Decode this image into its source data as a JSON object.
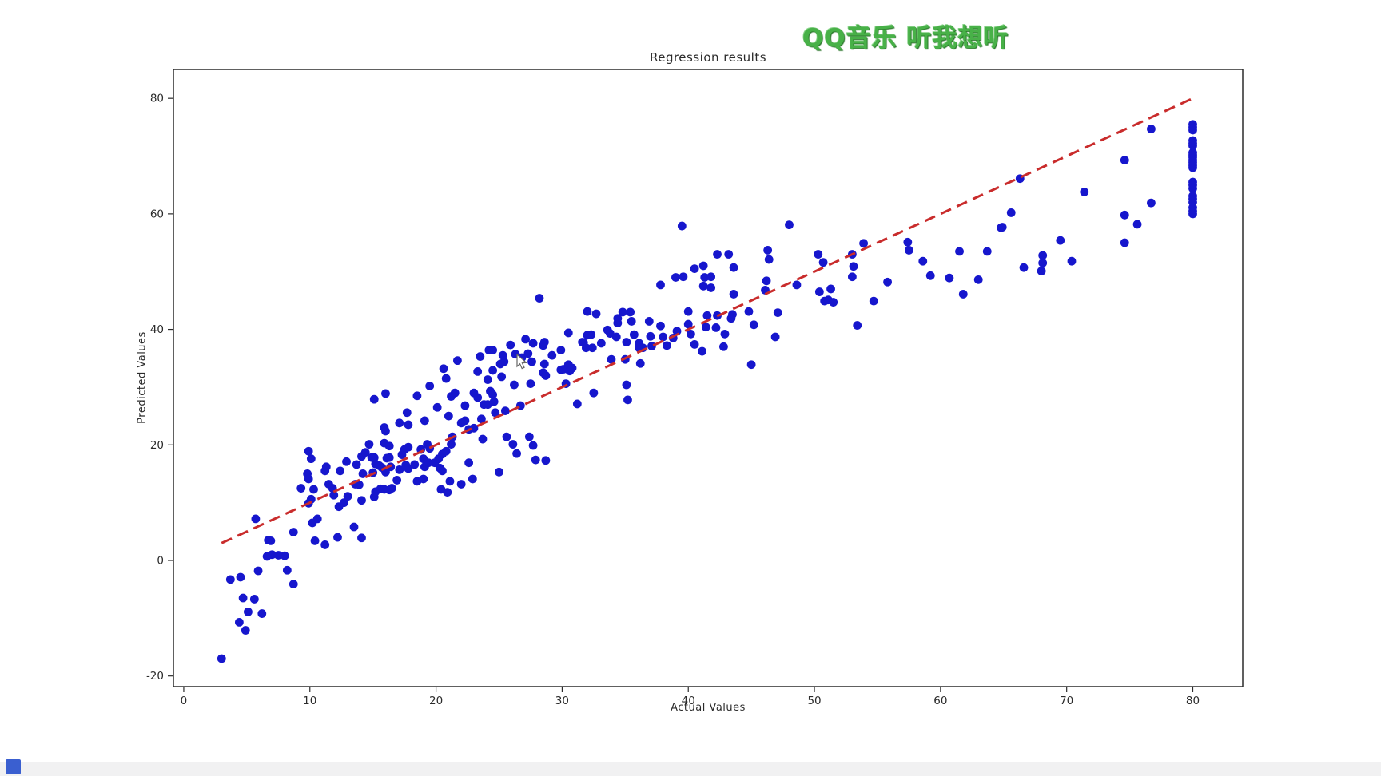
{
  "window": {
    "background": "#ffffff"
  },
  "watermark": {
    "text": "QQ音乐 听我想听",
    "color": "#48b148"
  },
  "taskbar": {
    "bar_color": "#f1f1f2",
    "app_square_color": "#3a5fd0"
  },
  "chart_data": {
    "type": "scatter",
    "title": "Regression results",
    "xlabel": "Actual Values",
    "ylabel": "Predicted Values",
    "x_ticks": [
      0,
      10,
      20,
      30,
      40,
      50,
      60,
      70,
      80
    ],
    "y_ticks": [
      -20,
      0,
      20,
      40,
      60,
      80
    ],
    "xlim": [
      -0.82,
      83.96
    ],
    "ylim": [
      -21.84,
      85.0
    ],
    "grid": false,
    "legend": "none",
    "point_color": "#1616cd",
    "point_radius": 5.4,
    "axis_color": "#2b2b2b",
    "reference_line": {
      "style": "dashed",
      "color": "#c92c2c",
      "width": 3,
      "dash": "14,8",
      "from": [
        3,
        3
      ],
      "to": [
        80,
        80
      ],
      "meaning": "y = x identity line"
    },
    "points": [
      [
        3.0,
        -17.0
      ],
      [
        3.7,
        -3.3
      ],
      [
        4.4,
        -10.7
      ],
      [
        4.5,
        -2.9
      ],
      [
        4.7,
        -6.5
      ],
      [
        4.9,
        -12.1
      ],
      [
        5.1,
        -8.9
      ],
      [
        5.6,
        -6.7
      ],
      [
        5.7,
        7.2
      ],
      [
        5.9,
        -1.8
      ],
      [
        6.2,
        -9.2
      ],
      [
        6.6,
        0.7
      ],
      [
        6.7,
        3.5
      ],
      [
        6.9,
        3.4
      ],
      [
        7.0,
        1.0
      ],
      [
        7.5,
        0.9
      ],
      [
        8.0,
        0.8
      ],
      [
        8.2,
        -1.7
      ],
      [
        8.7,
        -4.1
      ],
      [
        8.7,
        4.9
      ],
      [
        9.3,
        12.5
      ],
      [
        9.8,
        15.0
      ],
      [
        9.9,
        18.9
      ],
      [
        9.9,
        14.1
      ],
      [
        9.9,
        9.9
      ],
      [
        10.1,
        17.6
      ],
      [
        10.1,
        10.6
      ],
      [
        10.2,
        6.5
      ],
      [
        10.3,
        12.3
      ],
      [
        10.4,
        3.4
      ],
      [
        10.6,
        7.2
      ],
      [
        11.2,
        15.5
      ],
      [
        11.2,
        2.7
      ],
      [
        11.3,
        16.2
      ],
      [
        11.5,
        13.2
      ],
      [
        11.8,
        12.5
      ],
      [
        11.9,
        11.3
      ],
      [
        12.2,
        4.0
      ],
      [
        12.3,
        9.3
      ],
      [
        12.4,
        15.5
      ],
      [
        12.7,
        10.0
      ],
      [
        12.9,
        17.1
      ],
      [
        13.0,
        11.1
      ],
      [
        13.5,
        5.8
      ],
      [
        13.6,
        13.2
      ],
      [
        13.7,
        16.6
      ],
      [
        13.9,
        13.1
      ],
      [
        14.1,
        18.0
      ],
      [
        14.1,
        10.4
      ],
      [
        14.1,
        3.9
      ],
      [
        14.2,
        15.0
      ],
      [
        14.4,
        18.7
      ],
      [
        14.7,
        20.1
      ],
      [
        14.9,
        17.8
      ],
      [
        15.0,
        15.2
      ],
      [
        15.1,
        27.9
      ],
      [
        15.1,
        17.8
      ],
      [
        15.1,
        11.0
      ],
      [
        15.2,
        16.7
      ],
      [
        15.2,
        11.9
      ],
      [
        15.5,
        16.4
      ],
      [
        15.6,
        12.4
      ],
      [
        15.7,
        16.1
      ],
      [
        15.9,
        23.0
      ],
      [
        15.9,
        20.3
      ],
      [
        15.9,
        12.3
      ],
      [
        16.0,
        28.9
      ],
      [
        16.0,
        22.4
      ],
      [
        16.0,
        15.3
      ],
      [
        16.1,
        17.7
      ],
      [
        16.3,
        19.8
      ],
      [
        16.3,
        17.8
      ],
      [
        16.3,
        12.2
      ],
      [
        16.4,
        16.2
      ],
      [
        16.5,
        12.5
      ],
      [
        16.9,
        13.9
      ],
      [
        17.1,
        23.8
      ],
      [
        17.1,
        15.7
      ],
      [
        17.3,
        18.3
      ],
      [
        17.5,
        19.2
      ],
      [
        17.6,
        16.5
      ],
      [
        17.7,
        25.6
      ],
      [
        17.8,
        23.5
      ],
      [
        17.8,
        19.6
      ],
      [
        17.8,
        15.9
      ],
      [
        18.3,
        16.6
      ],
      [
        18.5,
        28.5
      ],
      [
        18.5,
        13.7
      ],
      [
        18.8,
        19.2
      ],
      [
        19.0,
        17.6
      ],
      [
        19.0,
        14.1
      ],
      [
        19.1,
        24.2
      ],
      [
        19.1,
        16.2
      ],
      [
        19.3,
        20.1
      ],
      [
        19.4,
        16.9
      ],
      [
        19.5,
        30.2
      ],
      [
        19.5,
        19.4
      ],
      [
        19.9,
        16.9
      ],
      [
        20.1,
        26.5
      ],
      [
        20.2,
        17.6
      ],
      [
        20.3,
        16.0
      ],
      [
        20.4,
        12.3
      ],
      [
        20.5,
        18.4
      ],
      [
        20.5,
        15.5
      ],
      [
        20.6,
        33.2
      ],
      [
        20.8,
        31.5
      ],
      [
        20.8,
        18.9
      ],
      [
        20.9,
        11.8
      ],
      [
        21.0,
        25.0
      ],
      [
        21.1,
        13.7
      ],
      [
        21.2,
        28.4
      ],
      [
        21.2,
        20.1
      ],
      [
        21.3,
        21.4
      ],
      [
        21.5,
        29.0
      ],
      [
        21.7,
        34.6
      ],
      [
        22.0,
        23.8
      ],
      [
        22.0,
        13.2
      ],
      [
        22.3,
        26.8
      ],
      [
        22.3,
        24.2
      ],
      [
        22.6,
        22.7
      ],
      [
        22.6,
        16.9
      ],
      [
        22.9,
        14.1
      ],
      [
        23.0,
        29.0
      ],
      [
        23.0,
        22.9
      ],
      [
        23.3,
        32.7
      ],
      [
        23.3,
        28.2
      ],
      [
        23.5,
        35.3
      ],
      [
        23.6,
        24.5
      ],
      [
        23.7,
        21.0
      ],
      [
        23.8,
        27.0
      ],
      [
        24.1,
        31.3
      ],
      [
        24.1,
        27.0
      ],
      [
        24.2,
        36.4
      ],
      [
        24.3,
        29.3
      ],
      [
        24.5,
        36.4
      ],
      [
        24.5,
        32.9
      ],
      [
        24.5,
        28.7
      ],
      [
        24.6,
        27.5
      ],
      [
        24.7,
        25.6
      ],
      [
        25.0,
        15.3
      ],
      [
        25.1,
        34.0
      ],
      [
        25.2,
        31.8
      ],
      [
        25.3,
        35.5
      ],
      [
        25.4,
        34.4
      ],
      [
        25.5,
        25.9
      ],
      [
        25.6,
        21.4
      ],
      [
        25.9,
        37.3
      ],
      [
        26.1,
        20.1
      ],
      [
        26.2,
        30.4
      ],
      [
        26.3,
        35.7
      ],
      [
        26.4,
        18.5
      ],
      [
        26.7,
        26.8
      ],
      [
        26.8,
        35.1
      ],
      [
        27.1,
        38.3
      ],
      [
        27.3,
        35.8
      ],
      [
        27.4,
        21.4
      ],
      [
        27.5,
        30.6
      ],
      [
        27.6,
        34.4
      ],
      [
        27.7,
        37.6
      ],
      [
        27.7,
        19.9
      ],
      [
        27.9,
        17.4
      ],
      [
        28.2,
        45.4
      ],
      [
        28.5,
        37.2
      ],
      [
        28.5,
        32.5
      ],
      [
        28.6,
        37.8
      ],
      [
        28.6,
        34.0
      ],
      [
        28.7,
        32.0
      ],
      [
        28.7,
        17.3
      ],
      [
        29.2,
        35.5
      ],
      [
        29.9,
        36.4
      ],
      [
        29.9,
        33.0
      ],
      [
        30.1,
        33.1
      ],
      [
        30.3,
        30.6
      ],
      [
        30.5,
        39.4
      ],
      [
        30.5,
        33.9
      ],
      [
        30.6,
        32.8
      ],
      [
        30.8,
        33.3
      ],
      [
        31.2,
        27.1
      ],
      [
        31.6,
        37.8
      ],
      [
        31.7,
        37.7
      ],
      [
        31.9,
        36.8
      ],
      [
        32.0,
        43.1
      ],
      [
        32.0,
        39.0
      ],
      [
        32.3,
        39.1
      ],
      [
        32.4,
        36.8
      ],
      [
        32.5,
        29.0
      ],
      [
        32.7,
        42.7
      ],
      [
        33.1,
        37.6
      ],
      [
        33.6,
        39.9
      ],
      [
        33.8,
        39.3
      ],
      [
        33.9,
        34.8
      ],
      [
        34.3,
        38.7
      ],
      [
        34.4,
        41.9
      ],
      [
        34.4,
        41.1
      ],
      [
        34.8,
        43.0
      ],
      [
        35.0,
        34.8
      ],
      [
        35.1,
        37.8
      ],
      [
        35.1,
        30.4
      ],
      [
        35.2,
        27.8
      ],
      [
        35.4,
        43.0
      ],
      [
        35.5,
        41.4
      ],
      [
        35.7,
        39.1
      ],
      [
        36.1,
        37.6
      ],
      [
        36.1,
        36.8
      ],
      [
        36.2,
        34.1
      ],
      [
        36.4,
        36.8
      ],
      [
        36.9,
        41.4
      ],
      [
        37.0,
        38.8
      ],
      [
        37.1,
        37.1
      ],
      [
        37.8,
        47.7
      ],
      [
        37.8,
        40.6
      ],
      [
        38.0,
        38.7
      ],
      [
        38.3,
        37.2
      ],
      [
        38.8,
        38.5
      ],
      [
        39.0,
        49.0
      ],
      [
        39.1,
        39.7
      ],
      [
        39.5,
        57.9
      ],
      [
        39.6,
        49.1
      ],
      [
        40.0,
        43.1
      ],
      [
        40.0,
        40.9
      ],
      [
        40.2,
        39.2
      ],
      [
        40.5,
        50.5
      ],
      [
        40.5,
        37.4
      ],
      [
        41.1,
        36.2
      ],
      [
        41.2,
        51.0
      ],
      [
        41.2,
        47.5
      ],
      [
        41.3,
        49.0
      ],
      [
        41.4,
        40.4
      ],
      [
        41.5,
        42.4
      ],
      [
        41.8,
        49.1
      ],
      [
        41.8,
        47.2
      ],
      [
        42.2,
        40.3
      ],
      [
        42.3,
        53.0
      ],
      [
        42.3,
        42.4
      ],
      [
        42.8,
        37.0
      ],
      [
        42.9,
        39.2
      ],
      [
        43.2,
        53.0
      ],
      [
        43.4,
        41.9
      ],
      [
        43.5,
        42.6
      ],
      [
        43.6,
        50.7
      ],
      [
        43.6,
        46.1
      ],
      [
        44.8,
        43.1
      ],
      [
        45.0,
        33.9
      ],
      [
        45.2,
        40.8
      ],
      [
        46.1,
        46.8
      ],
      [
        46.2,
        48.4
      ],
      [
        46.3,
        53.7
      ],
      [
        46.4,
        52.1
      ],
      [
        46.9,
        38.7
      ],
      [
        47.1,
        42.9
      ],
      [
        48.0,
        58.1
      ],
      [
        48.6,
        47.7
      ],
      [
        50.3,
        53.0
      ],
      [
        50.4,
        46.5
      ],
      [
        50.7,
        51.6
      ],
      [
        50.8,
        44.9
      ],
      [
        51.1,
        45.1
      ],
      [
        51.3,
        47.0
      ],
      [
        51.5,
        44.7
      ],
      [
        53.0,
        53.0
      ],
      [
        53.0,
        49.1
      ],
      [
        53.1,
        50.9
      ],
      [
        53.4,
        40.7
      ],
      [
        53.9,
        54.9
      ],
      [
        54.7,
        44.9
      ],
      [
        55.8,
        48.2
      ],
      [
        57.4,
        55.1
      ],
      [
        57.5,
        53.7
      ],
      [
        58.6,
        51.8
      ],
      [
        59.2,
        49.3
      ],
      [
        60.7,
        48.9
      ],
      [
        61.5,
        53.5
      ],
      [
        61.8,
        46.1
      ],
      [
        63.0,
        48.6
      ],
      [
        63.7,
        53.5
      ],
      [
        64.8,
        57.6
      ],
      [
        64.9,
        57.7
      ],
      [
        65.6,
        60.2
      ],
      [
        66.3,
        66.1
      ],
      [
        66.6,
        50.7
      ],
      [
        68.0,
        50.1
      ],
      [
        68.1,
        52.8
      ],
      [
        68.1,
        51.5
      ],
      [
        69.5,
        55.4
      ],
      [
        70.4,
        51.8
      ],
      [
        71.4,
        63.8
      ],
      [
        74.6,
        69.3
      ],
      [
        74.6,
        59.8
      ],
      [
        74.6,
        55.0
      ],
      [
        75.6,
        58.2
      ],
      [
        76.7,
        74.7
      ],
      [
        76.7,
        61.9
      ],
      [
        80,
        75.5
      ],
      [
        80,
        75.0
      ],
      [
        80,
        74.5
      ],
      [
        80,
        72.7
      ],
      [
        80,
        72.2
      ],
      [
        80,
        71.8
      ],
      [
        80,
        70.6
      ],
      [
        80,
        70.2
      ],
      [
        80,
        69.8
      ],
      [
        80,
        69.3
      ],
      [
        80,
        68.9
      ],
      [
        80,
        68.4
      ],
      [
        80,
        68.0
      ],
      [
        80,
        65.5
      ],
      [
        80,
        65.0
      ],
      [
        80,
        64.4
      ],
      [
        80,
        63.1
      ],
      [
        80,
        62.6
      ],
      [
        80,
        62.0
      ],
      [
        80,
        61.1
      ],
      [
        80,
        60.5
      ],
      [
        80,
        60.0
      ]
    ]
  }
}
